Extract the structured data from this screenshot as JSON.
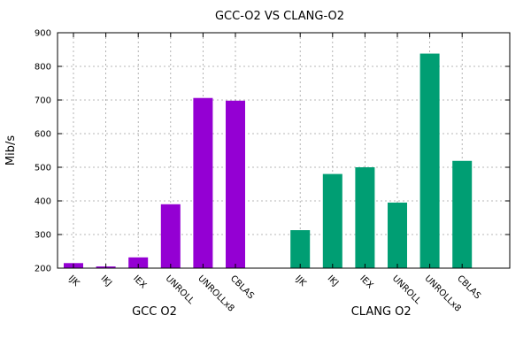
{
  "chart_data": {
    "type": "bar",
    "title": "GCC-O2 VS CLANG-O2",
    "xlabel": "",
    "ylabel": "Mib/s",
    "ylim": [
      200,
      900
    ],
    "yticks": [
      200,
      300,
      400,
      500,
      600,
      700,
      800,
      900
    ],
    "grid": true,
    "legend": "none",
    "groups": [
      {
        "name": "GCC O2",
        "color": "#9400d3",
        "categories": [
          "IJK",
          "IKJ",
          "IEX",
          "UNROLL",
          "UNROLLx8",
          "CBLAS"
        ],
        "values": [
          215,
          205,
          232,
          390,
          706,
          698
        ]
      },
      {
        "name": "CLANG O2",
        "color": "#009e73",
        "categories": [
          "IJK",
          "IKJ",
          "IEX",
          "UNROLL",
          "UNROLLx8",
          "CBLAS"
        ],
        "values": [
          313,
          480,
          500,
          395,
          838,
          519
        ]
      }
    ]
  }
}
